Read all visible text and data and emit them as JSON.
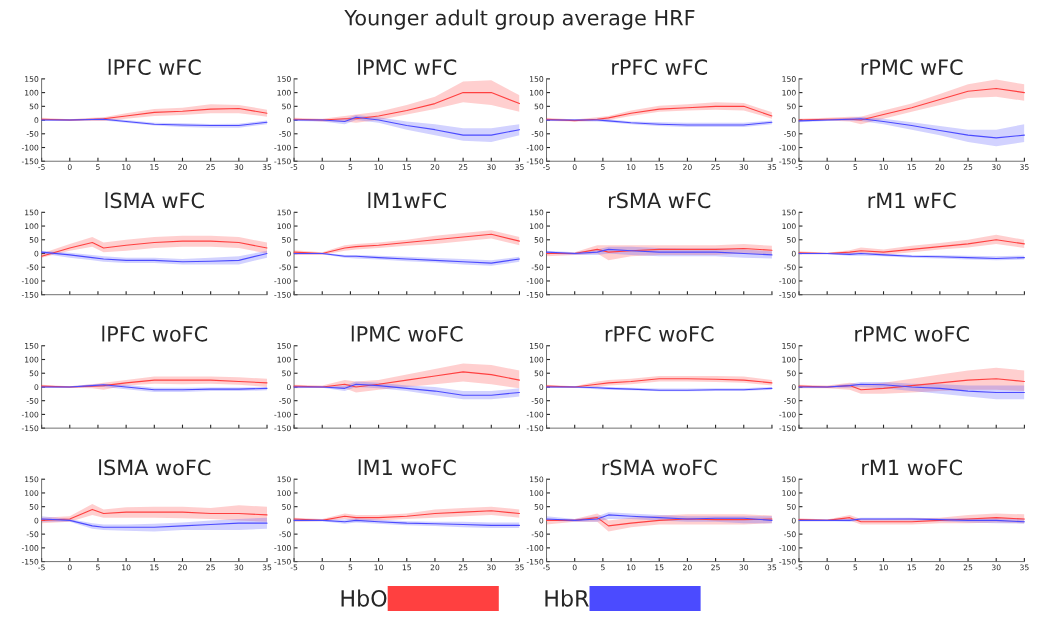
{
  "chart_data": [
    {
      "type": "line",
      "title": "lPFC wFC",
      "annotations": [
        "Younger adult group average HRF"
      ],
      "legend": "bottom",
      "x": [
        -5,
        0,
        4,
        6,
        10,
        15,
        20,
        25,
        30,
        35
      ],
      "xlim": [
        -5,
        35
      ],
      "ylim": [
        -150,
        150
      ],
      "xticks": [
        -5,
        0,
        5,
        10,
        15,
        20,
        25,
        30,
        35
      ],
      "yticks": [
        -150,
        -100,
        -50,
        0,
        50,
        100,
        150
      ],
      "series": [
        {
          "name": "HbO",
          "color": "#ff4040",
          "values": [
            3,
            0,
            3,
            5,
            15,
            28,
            32,
            40,
            42,
            25
          ],
          "lower": [
            0,
            -3,
            -3,
            -3,
            5,
            15,
            18,
            25,
            25,
            12
          ],
          "upper": [
            8,
            3,
            8,
            10,
            25,
            40,
            45,
            58,
            55,
            38
          ]
        },
        {
          "name": "HbR",
          "color": "#4b4bff",
          "values": [
            0,
            0,
            2,
            3,
            -5,
            -15,
            -18,
            -20,
            -20,
            -8
          ],
          "lower": [
            -3,
            -3,
            -2,
            -2,
            -10,
            -20,
            -25,
            -28,
            -28,
            -15
          ],
          "upper": [
            3,
            3,
            6,
            8,
            0,
            -10,
            -12,
            -14,
            -13,
            -2
          ]
        }
      ]
    },
    {
      "type": "line",
      "title": "lPMC wFC",
      "x": [
        -5,
        0,
        4,
        6,
        10,
        15,
        20,
        25,
        30,
        35
      ],
      "xlim": [
        -5,
        35
      ],
      "ylim": [
        -150,
        150
      ],
      "xticks": [
        -5,
        0,
        5,
        10,
        15,
        20,
        25,
        30,
        35
      ],
      "yticks": [
        -150,
        -100,
        -50,
        0,
        50,
        100,
        150
      ],
      "series": [
        {
          "color": "#ff4040",
          "values": [
            3,
            0,
            5,
            5,
            15,
            35,
            60,
            100,
            100,
            60
          ],
          "lower": [
            0,
            -5,
            -5,
            -10,
            0,
            20,
            40,
            65,
            55,
            30
          ],
          "upper": [
            8,
            5,
            15,
            20,
            30,
            55,
            85,
            140,
            145,
            90
          ]
        },
        {
          "color": "#4b4bff",
          "values": [
            0,
            0,
            -5,
            10,
            0,
            -20,
            -35,
            -55,
            -55,
            -35
          ],
          "lower": [
            -3,
            -5,
            -15,
            0,
            -10,
            -35,
            -55,
            -75,
            -80,
            -55
          ],
          "upper": [
            3,
            3,
            5,
            18,
            10,
            -5,
            -15,
            -30,
            -30,
            -15
          ]
        }
      ]
    },
    {
      "type": "line",
      "title": "rPFC wFC",
      "x": [
        -5,
        0,
        4,
        6,
        10,
        15,
        20,
        25,
        30,
        35
      ],
      "xlim": [
        -5,
        35
      ],
      "ylim": [
        -150,
        150
      ],
      "xticks": [
        -5,
        0,
        5,
        10,
        15,
        20,
        25,
        30,
        35
      ],
      "yticks": [
        -150,
        -100,
        -50,
        0,
        50,
        100,
        150
      ],
      "series": [
        {
          "color": "#ff4040",
          "values": [
            3,
            -2,
            3,
            8,
            25,
            40,
            45,
            50,
            50,
            15
          ],
          "lower": [
            -3,
            -5,
            -3,
            0,
            15,
            30,
            35,
            38,
            35,
            5
          ],
          "upper": [
            8,
            2,
            10,
            15,
            35,
            52,
            58,
            65,
            62,
            28
          ]
        },
        {
          "color": "#4b4bff",
          "values": [
            0,
            0,
            0,
            -3,
            -10,
            -15,
            -18,
            -18,
            -18,
            -8
          ],
          "lower": [
            -3,
            -3,
            -5,
            -8,
            -15,
            -22,
            -25,
            -25,
            -25,
            -15
          ],
          "upper": [
            3,
            3,
            5,
            3,
            -5,
            -8,
            -10,
            -10,
            -10,
            -2
          ]
        }
      ]
    },
    {
      "type": "line",
      "title": "rPMC wFC",
      "x": [
        -5,
        0,
        4,
        6,
        10,
        15,
        20,
        25,
        30,
        35
      ],
      "xlim": [
        -5,
        35
      ],
      "ylim": [
        -150,
        150
      ],
      "xticks": [
        -5,
        0,
        5,
        10,
        15,
        20,
        25,
        30,
        35
      ],
      "yticks": [
        -150,
        -100,
        -50,
        0,
        50,
        100,
        150
      ],
      "series": [
        {
          "color": "#ff4040",
          "values": [
            0,
            3,
            3,
            0,
            20,
            45,
            75,
            105,
            115,
            100
          ],
          "lower": [
            -3,
            -2,
            -5,
            -15,
            5,
            30,
            55,
            80,
            85,
            70
          ],
          "upper": [
            5,
            8,
            12,
            12,
            35,
            60,
            95,
            130,
            148,
            130
          ]
        },
        {
          "color": "#4b4bff",
          "values": [
            -3,
            0,
            3,
            5,
            -5,
            -20,
            -38,
            -55,
            -65,
            -55
          ],
          "lower": [
            -8,
            -3,
            -3,
            -3,
            -15,
            -35,
            -55,
            -80,
            -95,
            -80
          ],
          "upper": [
            2,
            3,
            8,
            12,
            5,
            -8,
            -22,
            -35,
            -35,
            -15
          ]
        }
      ]
    },
    {
      "type": "line",
      "title": "lSMA wFC",
      "tick_labels": "y",
      "x": [
        -5,
        0,
        4,
        6,
        10,
        15,
        20,
        25,
        30,
        35
      ],
      "xlim": [
        -5,
        35
      ],
      "ylim": [
        -150,
        150
      ],
      "xticks": [
        -5,
        0,
        5,
        10,
        15,
        20,
        25,
        30,
        35
      ],
      "yticks": [
        -150,
        -100,
        -50,
        0,
        50,
        100,
        150
      ],
      "series": [
        {
          "color": "#ff4040",
          "values": [
            -10,
            20,
            40,
            20,
            30,
            40,
            45,
            45,
            40,
            20
          ],
          "lower": [
            -15,
            10,
            25,
            5,
            10,
            20,
            25,
            25,
            20,
            0
          ],
          "upper": [
            0,
            35,
            60,
            40,
            50,
            60,
            65,
            65,
            60,
            40
          ]
        },
        {
          "color": "#4b4bff",
          "values": [
            5,
            -5,
            -15,
            -20,
            -25,
            -25,
            -30,
            -28,
            -25,
            0
          ],
          "lower": [
            0,
            -15,
            -25,
            -30,
            -35,
            -35,
            -40,
            -40,
            -40,
            -15
          ],
          "upper": [
            10,
            3,
            -5,
            -10,
            -15,
            -15,
            -20,
            -15,
            -10,
            10
          ]
        }
      ]
    },
    {
      "type": "line",
      "title": "lM1wFC",
      "tick_labels": "y",
      "x": [
        -5,
        0,
        4,
        6,
        10,
        15,
        20,
        25,
        30,
        35
      ],
      "xlim": [
        -5,
        35
      ],
      "ylim": [
        -150,
        150
      ],
      "xticks": [
        -5,
        0,
        5,
        10,
        15,
        20,
        25,
        30,
        35
      ],
      "yticks": [
        -150,
        -100,
        -50,
        0,
        50,
        100,
        150
      ],
      "series": [
        {
          "color": "#ff4040",
          "values": [
            5,
            0,
            20,
            25,
            30,
            40,
            50,
            60,
            70,
            45
          ],
          "lower": [
            -5,
            -5,
            10,
            15,
            20,
            28,
            35,
            45,
            55,
            30
          ],
          "upper": [
            12,
            5,
            30,
            35,
            40,
            50,
            65,
            75,
            85,
            60
          ]
        },
        {
          "color": "#4b4bff",
          "values": [
            0,
            0,
            -10,
            -10,
            -15,
            -20,
            -25,
            -30,
            -35,
            -20
          ],
          "lower": [
            -3,
            -3,
            -15,
            -18,
            -22,
            -28,
            -33,
            -40,
            -45,
            -30
          ],
          "upper": [
            3,
            3,
            -5,
            -5,
            -8,
            -12,
            -16,
            -20,
            -25,
            -12
          ]
        }
      ]
    },
    {
      "type": "line",
      "title": "rSMA wFC",
      "tick_labels": "y",
      "x": [
        -5,
        0,
        4,
        6,
        10,
        15,
        20,
        25,
        30,
        35
      ],
      "xlim": [
        -5,
        35
      ],
      "ylim": [
        -150,
        150
      ],
      "xticks": [
        -5,
        0,
        5,
        10,
        15,
        20,
        25,
        30,
        35
      ],
      "yticks": [
        -150,
        -100,
        -50,
        0,
        50,
        100,
        150
      ],
      "series": [
        {
          "color": "#ff4040",
          "values": [
            0,
            0,
            15,
            5,
            10,
            15,
            15,
            15,
            18,
            12
          ],
          "lower": [
            -10,
            -5,
            0,
            -25,
            -10,
            -5,
            -5,
            -5,
            0,
            -5
          ],
          "upper": [
            5,
            5,
            30,
            30,
            30,
            30,
            30,
            30,
            35,
            28
          ]
        },
        {
          "color": "#4b4bff",
          "values": [
            5,
            0,
            5,
            15,
            10,
            5,
            5,
            5,
            0,
            -5
          ],
          "lower": [
            0,
            -5,
            -5,
            0,
            -5,
            -10,
            -10,
            -10,
            -15,
            -18
          ],
          "upper": [
            10,
            5,
            15,
            25,
            25,
            20,
            18,
            18,
            15,
            8
          ]
        }
      ]
    },
    {
      "type": "line",
      "title": "rM1 wFC",
      "tick_labels": "y",
      "x": [
        -5,
        0,
        4,
        6,
        10,
        15,
        20,
        25,
        30,
        35
      ],
      "xlim": [
        -5,
        35
      ],
      "ylim": [
        -150,
        150
      ],
      "xticks": [
        -5,
        0,
        5,
        10,
        15,
        20,
        25,
        30,
        35
      ],
      "yticks": [
        -150,
        -100,
        -50,
        0,
        50,
        100,
        150
      ],
      "series": [
        {
          "color": "#ff4040",
          "values": [
            3,
            0,
            5,
            10,
            5,
            15,
            25,
            35,
            50,
            35
          ],
          "lower": [
            -3,
            -3,
            -3,
            0,
            -5,
            5,
            15,
            22,
            35,
            20
          ],
          "upper": [
            8,
            3,
            12,
            22,
            15,
            28,
            38,
            50,
            68,
            50
          ]
        },
        {
          "color": "#4b4bff",
          "values": [
            0,
            0,
            -3,
            0,
            -5,
            -10,
            -12,
            -15,
            -18,
            -15
          ],
          "lower": [
            -3,
            -3,
            -8,
            -8,
            -10,
            -15,
            -18,
            -22,
            -25,
            -22
          ],
          "upper": [
            3,
            3,
            3,
            5,
            0,
            -5,
            -6,
            -8,
            -10,
            -8
          ]
        }
      ]
    },
    {
      "type": "line",
      "title": "lPFC woFC",
      "tick_labels": "y",
      "x": [
        -5,
        0,
        4,
        6,
        10,
        15,
        20,
        25,
        30,
        35
      ],
      "xlim": [
        -5,
        35
      ],
      "ylim": [
        -150,
        150
      ],
      "xticks": [
        -5,
        0,
        5,
        10,
        15,
        20,
        25,
        30,
        35
      ],
      "yticks": [
        -150,
        -100,
        -50,
        0,
        50,
        100,
        150
      ],
      "series": [
        {
          "color": "#ff4040",
          "values": [
            3,
            0,
            3,
            5,
            15,
            25,
            25,
            25,
            20,
            15
          ],
          "lower": [
            -3,
            -3,
            -5,
            -10,
            5,
            12,
            10,
            12,
            8,
            0
          ],
          "upper": [
            8,
            3,
            10,
            15,
            25,
            38,
            38,
            38,
            35,
            30
          ]
        },
        {
          "color": "#4b4bff",
          "values": [
            0,
            0,
            5,
            8,
            0,
            -10,
            -10,
            -8,
            -8,
            -5
          ],
          "lower": [
            -3,
            -3,
            0,
            0,
            -8,
            -18,
            -18,
            -15,
            -15,
            -12
          ],
          "upper": [
            3,
            3,
            10,
            12,
            8,
            -3,
            -3,
            -2,
            -2,
            0
          ]
        }
      ]
    },
    {
      "type": "line",
      "title": "lPMC woFC",
      "tick_labels": "y",
      "x": [
        -5,
        0,
        4,
        6,
        10,
        15,
        20,
        25,
        30,
        35
      ],
      "xlim": [
        -5,
        35
      ],
      "ylim": [
        -150,
        150
      ],
      "xticks": [
        -5,
        0,
        5,
        10,
        15,
        20,
        25,
        30,
        35
      ],
      "yticks": [
        -150,
        -100,
        -50,
        0,
        50,
        100,
        150
      ],
      "series": [
        {
          "color": "#ff4040",
          "values": [
            3,
            0,
            10,
            0,
            10,
            25,
            40,
            55,
            45,
            25
          ],
          "lower": [
            -5,
            -3,
            -5,
            -20,
            -10,
            0,
            10,
            20,
            10,
            -5
          ],
          "upper": [
            8,
            5,
            25,
            20,
            25,
            45,
            65,
            85,
            80,
            60
          ]
        },
        {
          "color": "#4b4bff",
          "values": [
            0,
            0,
            -5,
            10,
            5,
            -5,
            -15,
            -30,
            -30,
            -20
          ],
          "lower": [
            -3,
            -3,
            -15,
            0,
            -5,
            -15,
            -30,
            -45,
            -45,
            -35
          ],
          "upper": [
            3,
            3,
            5,
            20,
            15,
            5,
            0,
            -15,
            -15,
            -5
          ]
        }
      ]
    },
    {
      "type": "line",
      "title": "rPFC woFC",
      "tick_labels": "y",
      "x": [
        -5,
        0,
        4,
        6,
        10,
        15,
        20,
        25,
        30,
        35
      ],
      "xlim": [
        -5,
        35
      ],
      "ylim": [
        -150,
        150
      ],
      "xticks": [
        -5,
        0,
        5,
        10,
        15,
        20,
        25,
        30,
        35
      ],
      "yticks": [
        -150,
        -100,
        -50,
        0,
        50,
        100,
        150
      ],
      "series": [
        {
          "color": "#ff4040",
          "values": [
            3,
            0,
            10,
            15,
            20,
            30,
            30,
            28,
            25,
            15
          ],
          "lower": [
            -3,
            -3,
            0,
            5,
            10,
            20,
            20,
            18,
            15,
            5
          ],
          "upper": [
            8,
            3,
            20,
            25,
            30,
            40,
            40,
            40,
            38,
            25
          ]
        },
        {
          "color": "#4b4bff",
          "values": [
            0,
            0,
            -3,
            -5,
            -8,
            -12,
            -12,
            -10,
            -10,
            -5
          ],
          "lower": [
            -3,
            -3,
            -8,
            -10,
            -12,
            -16,
            -16,
            -15,
            -15,
            -10
          ],
          "upper": [
            3,
            3,
            2,
            0,
            -3,
            -6,
            -6,
            -5,
            -5,
            0
          ]
        }
      ]
    },
    {
      "type": "line",
      "title": "rPMC woFC",
      "tick_labels": "y",
      "x": [
        -5,
        0,
        4,
        6,
        10,
        15,
        20,
        25,
        30,
        35
      ],
      "xlim": [
        -5,
        35
      ],
      "ylim": [
        -150,
        150
      ],
      "xticks": [
        -5,
        0,
        5,
        10,
        15,
        20,
        25,
        30,
        35
      ],
      "yticks": [
        -150,
        -100,
        -50,
        0,
        50,
        100,
        150
      ],
      "series": [
        {
          "color": "#ff4040",
          "values": [
            3,
            0,
            5,
            -10,
            -5,
            5,
            15,
            25,
            30,
            20
          ],
          "lower": [
            -5,
            -5,
            -10,
            -25,
            -25,
            -20,
            -15,
            -10,
            -10,
            -15
          ],
          "upper": [
            8,
            5,
            15,
            10,
            15,
            30,
            45,
            60,
            70,
            60
          ]
        },
        {
          "color": "#4b4bff",
          "values": [
            0,
            0,
            5,
            10,
            8,
            0,
            -5,
            -15,
            -20,
            -20
          ],
          "lower": [
            -3,
            -3,
            -3,
            0,
            -5,
            -15,
            -25,
            -35,
            -45,
            -45
          ],
          "upper": [
            3,
            3,
            12,
            18,
            18,
            12,
            10,
            5,
            5,
            5
          ]
        }
      ]
    },
    {
      "type": "line",
      "title": "lSMA woFC",
      "x": [
        -5,
        0,
        4,
        6,
        10,
        15,
        20,
        25,
        30,
        35
      ],
      "xlim": [
        -5,
        35
      ],
      "ylim": [
        -150,
        150
      ],
      "xticks": [
        -5,
        0,
        5,
        10,
        15,
        20,
        25,
        30,
        35
      ],
      "yticks": [
        -150,
        -100,
        -50,
        0,
        50,
        100,
        150
      ],
      "series": [
        {
          "color": "#ff4040",
          "values": [
            0,
            5,
            40,
            25,
            30,
            30,
            30,
            25,
            25,
            20
          ],
          "lower": [
            -10,
            -5,
            20,
            10,
            10,
            10,
            8,
            5,
            0,
            -5
          ],
          "upper": [
            10,
            15,
            60,
            40,
            48,
            50,
            50,
            45,
            55,
            50
          ]
        },
        {
          "color": "#4b4bff",
          "values": [
            5,
            0,
            -20,
            -25,
            -25,
            -25,
            -20,
            -15,
            -10,
            -10
          ],
          "lower": [
            -5,
            -5,
            -30,
            -35,
            -38,
            -40,
            -35,
            -35,
            -35,
            -30
          ],
          "upper": [
            15,
            5,
            -10,
            -15,
            -15,
            -12,
            -8,
            0,
            5,
            10
          ]
        }
      ]
    },
    {
      "type": "line",
      "title": "lM1 woFC",
      "x": [
        -5,
        0,
        4,
        6,
        10,
        15,
        20,
        25,
        30,
        35
      ],
      "xlim": [
        -5,
        35
      ],
      "ylim": [
        -150,
        150
      ],
      "xticks": [
        -5,
        0,
        5,
        10,
        15,
        20,
        25,
        30,
        35
      ],
      "yticks": [
        -150,
        -100,
        -50,
        0,
        50,
        100,
        150
      ],
      "series": [
        {
          "color": "#ff4040",
          "values": [
            5,
            0,
            15,
            10,
            10,
            15,
            25,
            30,
            35,
            25
          ],
          "lower": [
            -5,
            -3,
            5,
            0,
            0,
            5,
            10,
            15,
            20,
            10
          ],
          "upper": [
            10,
            5,
            25,
            20,
            20,
            25,
            40,
            45,
            50,
            40
          ]
        },
        {
          "color": "#4b4bff",
          "values": [
            0,
            0,
            -5,
            0,
            -5,
            -10,
            -12,
            -15,
            -18,
            -18
          ],
          "lower": [
            -3,
            -3,
            -12,
            -8,
            -12,
            -18,
            -20,
            -25,
            -28,
            -28
          ],
          "upper": [
            3,
            3,
            3,
            8,
            3,
            -3,
            -5,
            -5,
            -8,
            -8
          ]
        }
      ]
    },
    {
      "type": "line",
      "title": "rSMA woFC",
      "x": [
        -5,
        0,
        4,
        6,
        10,
        15,
        20,
        25,
        30,
        35
      ],
      "xlim": [
        -5,
        35
      ],
      "ylim": [
        -150,
        150
      ],
      "xticks": [
        -5,
        0,
        5,
        10,
        15,
        20,
        25,
        30,
        35
      ],
      "yticks": [
        -150,
        -100,
        -50,
        0,
        50,
        100,
        150
      ],
      "series": [
        {
          "color": "#ff4040",
          "values": [
            0,
            0,
            10,
            -20,
            -10,
            0,
            5,
            3,
            3,
            5
          ],
          "lower": [
            -15,
            -5,
            -5,
            -40,
            -25,
            -15,
            -15,
            -15,
            -15,
            -10
          ],
          "upper": [
            5,
            5,
            25,
            0,
            10,
            18,
            22,
            22,
            22,
            18
          ]
        },
        {
          "color": "#4b4bff",
          "values": [
            5,
            0,
            5,
            20,
            15,
            10,
            5,
            8,
            8,
            0
          ],
          "lower": [
            0,
            -5,
            -5,
            5,
            5,
            0,
            -5,
            -5,
            -10,
            -10
          ],
          "upper": [
            15,
            5,
            15,
            30,
            25,
            20,
            15,
            15,
            15,
            15
          ]
        }
      ]
    },
    {
      "type": "line",
      "title": "rM1 woFC",
      "x": [
        -5,
        0,
        4,
        6,
        10,
        15,
        20,
        25,
        30,
        35
      ],
      "xlim": [
        -5,
        35
      ],
      "ylim": [
        -150,
        150
      ],
      "xticks": [
        -5,
        0,
        5,
        10,
        15,
        20,
        25,
        30,
        35
      ],
      "yticks": [
        -150,
        -100,
        -50,
        0,
        50,
        100,
        150
      ],
      "series": [
        {
          "color": "#ff4040",
          "values": [
            3,
            0,
            10,
            -5,
            -5,
            -5,
            0,
            5,
            10,
            5
          ],
          "lower": [
            -3,
            -3,
            0,
            -15,
            -15,
            -15,
            -10,
            -10,
            -8,
            -10
          ],
          "upper": [
            8,
            3,
            20,
            5,
            5,
            8,
            10,
            20,
            25,
            22
          ]
        },
        {
          "color": "#4b4bff",
          "values": [
            0,
            0,
            0,
            5,
            5,
            5,
            3,
            0,
            0,
            -5
          ],
          "lower": [
            -3,
            -3,
            -5,
            0,
            0,
            0,
            -3,
            -8,
            -10,
            -12
          ],
          "upper": [
            3,
            3,
            5,
            10,
            10,
            10,
            8,
            8,
            8,
            5
          ]
        }
      ]
    }
  ]
}
